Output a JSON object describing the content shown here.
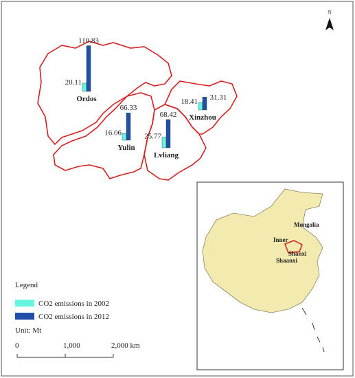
{
  "north": "N",
  "series": [
    {
      "name": "CO2 emissions in 2002",
      "color": "#66f5e0"
    },
    {
      "name": "CO2 emissions in 2012",
      "color": "#1f4fa8"
    }
  ],
  "regions": [
    {
      "name": "Ordos",
      "values": [
        20.11,
        110.83
      ]
    },
    {
      "name": "Yulin",
      "values": [
        16.06,
        66.33
      ]
    },
    {
      "name": "Lvliang",
      "values": [
        25.77,
        68.42
      ]
    },
    {
      "name": "Xinzhou",
      "values": [
        18.41,
        31.31
      ]
    }
  ],
  "legend": {
    "title": "Legend",
    "unit": "Unit: Mt"
  },
  "scale_bar": {
    "ticks": [
      {
        "value": 0,
        "label": "0"
      },
      {
        "value": 1000,
        "label": "1,000"
      },
      {
        "value": 2000,
        "label": "2,000 km"
      }
    ]
  },
  "inset_labels": [
    "Inner",
    "Mongolia",
    "Shanxi",
    "Shaanxi"
  ]
}
